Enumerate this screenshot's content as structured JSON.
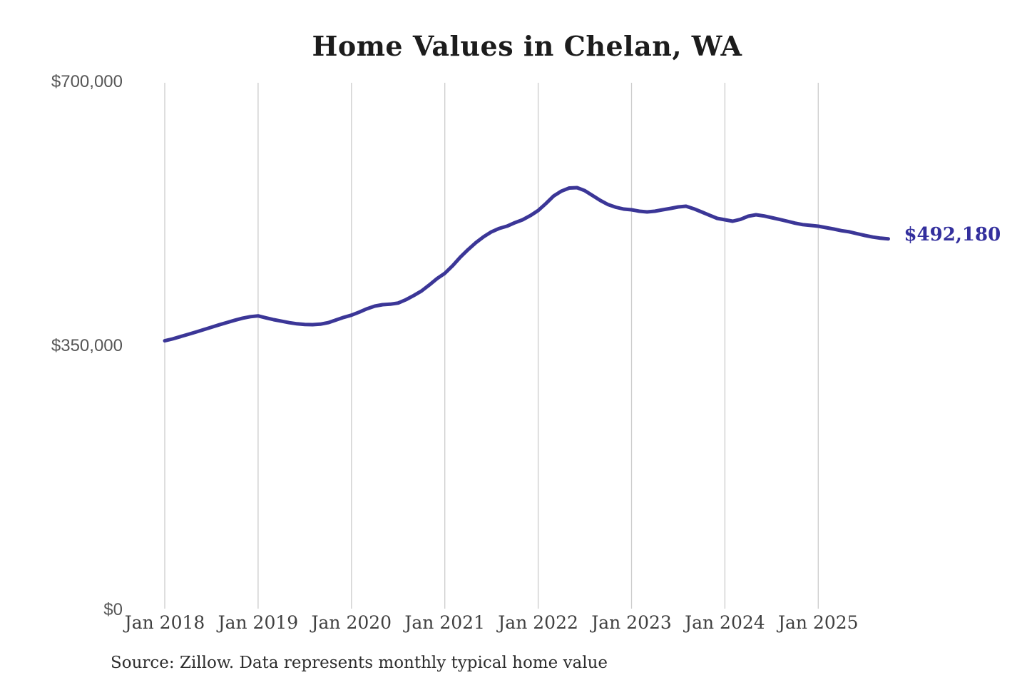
{
  "title": "Home Values in Chelan, WA",
  "source_note": "Source: Zillow. Data represents monthly typical home value",
  "end_label": "$492,180",
  "colors": {
    "line": "#3b3697",
    "end_label_text": "#332f9d",
    "grid": "#cccccc",
    "title_text": "#1c1c1c",
    "y_axis_text": "#565656",
    "x_axis_text": "#404040",
    "source_text": "#2e2e2e",
    "background": "#ffffff"
  },
  "chart_data": {
    "type": "line",
    "title": "Home Values in Chelan, WA",
    "x_tick_labels": [
      "Jan 2018",
      "Jan 2019",
      "Jan 2020",
      "Jan 2021",
      "Jan 2022",
      "Jan 2023",
      "Jan 2024",
      "Jan 2025"
    ],
    "y_ticks": [
      {
        "label": "$700,000",
        "value": 700000
      },
      {
        "label": "$350,000",
        "value": 350000
      },
      {
        "label": "$0",
        "value": 0
      }
    ],
    "ylim": [
      0,
      700000
    ],
    "grid": "vertical gridlines only, at each January",
    "legend_position": "none",
    "x_start": "Jan 2018",
    "x_end": "Oct 2025",
    "x_frequency": "monthly",
    "series": [
      {
        "name": "Typical home value",
        "values": [
          357000,
          359500,
          362500,
          365500,
          368500,
          371800,
          375000,
          378200,
          381200,
          384200,
          387000,
          389000,
          390000,
          387500,
          385000,
          383000,
          381000,
          379500,
          378600,
          378400,
          379000,
          381000,
          384500,
          388000,
          391000,
          395000,
          399500,
          403000,
          404900,
          405500,
          407000,
          411500,
          417000,
          423000,
          431000,
          439500,
          446500,
          456500,
          468000,
          478000,
          487200,
          495000,
          501400,
          506000,
          509000,
          513600,
          517400,
          523000,
          529700,
          539000,
          549000,
          555500,
          559500,
          560000,
          556000,
          549500,
          543000,
          537500,
          534000,
          531600,
          530700,
          528800,
          527800,
          528800,
          530700,
          532500,
          534500,
          535400,
          532000,
          527800,
          523500,
          519300,
          517400,
          515500,
          518000,
          522200,
          524100,
          522500,
          520300,
          518000,
          515500,
          513000,
          511000,
          510000,
          508900,
          507000,
          505100,
          503000,
          501400,
          499000,
          496600,
          494500,
          493000,
          492180
        ]
      }
    ],
    "final_value": 492180,
    "final_value_label": "$492,180"
  }
}
